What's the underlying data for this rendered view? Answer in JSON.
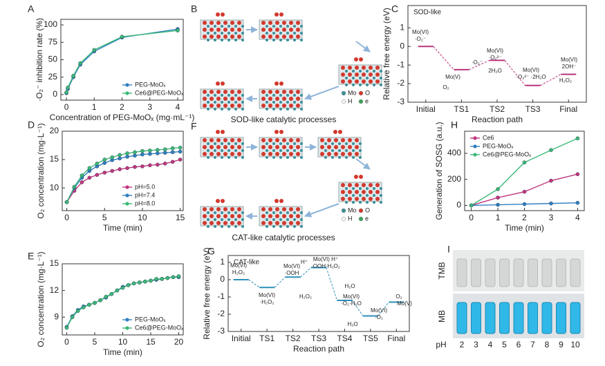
{
  "chart_data": [
    {
      "label": "A",
      "type": "line",
      "xlabel": "Concentration of PEG-MoOₓ (mg·mL⁻¹)",
      "ylabel": "·O₂⁻ inhibition rate (%)",
      "x": [
        0,
        0.05,
        0.25,
        0.5,
        1,
        2,
        4
      ],
      "xlim": [
        -0.2,
        4.2
      ],
      "xticks": [
        0,
        1,
        2,
        3,
        4
      ],
      "ylim": [
        -8,
        108
      ],
      "yticks": [
        0,
        25,
        50,
        75,
        100
      ],
      "legend": "lower right",
      "series": [
        {
          "name": "PEG-MoOₓ",
          "color": "#2f7fc1",
          "values": [
            2,
            8,
            25,
            43,
            62,
            82,
            94
          ]
        },
        {
          "name": "Ce6@PEG-MoOₓ",
          "color": "#3cb878",
          "values": [
            3,
            10,
            27,
            45,
            64,
            83,
            92
          ]
        }
      ]
    },
    {
      "label": "C",
      "type": "energy",
      "title": "SOD-like",
      "color": "#b8337a",
      "xlabel": "Reaction path",
      "ylabel": "Relative free energy (eV)",
      "categories": [
        "Initial",
        "TS1",
        "TS2",
        "TS3",
        "Final"
      ],
      "values": [
        0,
        -1.25,
        -0.75,
        -2.1,
        -1.5
      ],
      "ylim": [
        -3,
        2.2
      ],
      "yticks": [
        -3,
        -2,
        -1,
        0,
        1
      ],
      "annotations": [
        {
          "text": "Mo(VI)"
        },
        {
          "text": "·O₂⁻"
        },
        {
          "text": "Mo(V)"
        },
        {
          "text": "O₂",
          "color": "#3aa55a"
        },
        {
          "text": "·O₂⁻"
        },
        {
          "text": "Mo(VI)"
        },
        {
          "text": "·O₂²⁻"
        },
        {
          "text": "2H₂O"
        },
        {
          "text": "Mo(VI)"
        },
        {
          "text": "·O₂²⁻ ·2H₂O"
        },
        {
          "text": "Mo(VI)"
        },
        {
          "text": "2OH⁻"
        },
        {
          "text": "H₂O₂",
          "color": "#3aa55a"
        }
      ]
    },
    {
      "label": "D",
      "type": "line",
      "xlabel": "Time (min)",
      "ylabel": "O₂ concentration (mg·L⁻¹)",
      "x": [
        0,
        1,
        2,
        3,
        4,
        5,
        6,
        7,
        8,
        9,
        10,
        11,
        12,
        13,
        14,
        15
      ],
      "xlim": [
        -0.6,
        15.4
      ],
      "xticks": [
        0,
        5,
        10,
        15
      ],
      "ylim": [
        6,
        20
      ],
      "yticks": [
        10,
        15,
        20
      ],
      "legend": "lower right",
      "series": [
        {
          "name": "pH=5.0",
          "color": "#c2357f",
          "values": [
            7.5,
            9.5,
            11,
            11.8,
            12.3,
            12.7,
            13.0,
            13.3,
            13.5,
            13.7,
            13.8,
            14.0,
            14.1,
            14.3,
            14.6,
            15.0
          ]
        },
        {
          "name": "pH=7.4",
          "color": "#2f7fc1",
          "values": [
            7.5,
            10,
            11.8,
            13,
            13.8,
            14.4,
            14.9,
            15.2,
            15.5,
            15.7,
            15.9,
            16.0,
            16.1,
            16.2,
            16.3,
            16.4
          ]
        },
        {
          "name": "pH=8.0",
          "color": "#3cb878",
          "values": [
            7.5,
            10.2,
            12.2,
            13.5,
            14.3,
            15,
            15.4,
            15.8,
            16.1,
            16.3,
            16.5,
            16.6,
            16.7,
            16.8,
            17.0,
            17.1
          ]
        }
      ]
    },
    {
      "label": "E",
      "type": "line",
      "xlabel": "Time (min)",
      "ylabel": "O₂ concentration (mg·L⁻¹)",
      "x": [
        0,
        1,
        2,
        3,
        4,
        5,
        6,
        7,
        8,
        9,
        10,
        11,
        12,
        13,
        14,
        15,
        16,
        17,
        18,
        19,
        20
      ],
      "xlim": [
        -0.8,
        20.8
      ],
      "xticks": [
        0,
        5,
        10,
        15,
        20
      ],
      "ylim": [
        7,
        15
      ],
      "yticks": [
        9,
        12,
        15
      ],
      "legend": "lower right",
      "series": [
        {
          "name": "PEG-MoOₓ",
          "color": "#2f7fc1",
          "values": [
            7.9,
            9.1,
            9.8,
            10.2,
            10.4,
            10.6,
            10.9,
            11.2,
            11.6,
            12.0,
            12.4,
            12.6,
            12.8,
            12.9,
            13.0,
            13.1,
            13.2,
            13.3,
            13.4,
            13.5,
            13.5
          ]
        },
        {
          "name": "Ce6@PEG-MoOₓ",
          "color": "#3cb878",
          "values": [
            7.8,
            9.0,
            9.7,
            10.1,
            10.4,
            10.6,
            10.9,
            11.3,
            11.6,
            12.0,
            12.3,
            12.6,
            12.8,
            12.9,
            13.0,
            13.1,
            13.3,
            13.3,
            13.4,
            13.5,
            13.6
          ]
        }
      ]
    },
    {
      "label": "G",
      "type": "energy",
      "title": "CAT-like",
      "color": "#2a8fb8",
      "xlabel": "Reaction path",
      "ylabel": "Relative free energy (eV)",
      "categories": [
        "Initial",
        "TS1",
        "TS2",
        "TS3",
        "TS4",
        "TS5",
        "Final"
      ],
      "values": [
        0,
        -0.45,
        0.15,
        0.7,
        -1.2,
        -2.1,
        -1.3
      ],
      "ylim": [
        -3,
        1.4
      ],
      "yticks": [
        -3,
        -2,
        -1,
        0,
        1
      ],
      "annotations": [
        {
          "text": "Mo(VI)"
        },
        {
          "text": "H₂O₂"
        },
        {
          "text": "Mo(VI)"
        },
        {
          "text": "·H₂O₂"
        },
        {
          "text": "Mo(VI)"
        },
        {
          "text": "·OOH"
        },
        {
          "text": "H⁺"
        },
        {
          "text": "Mo(VI) H⁺"
        },
        {
          "text": "·OOH·H₂O₂"
        },
        {
          "text": "H₂O₂",
          "color": "#c2357f"
        },
        {
          "text": "H₂O",
          "color": "#3aa55a"
        },
        {
          "text": "Mo(VI)"
        },
        {
          "text": "·O₂·H₂O"
        },
        {
          "text": "H₂O",
          "color": "#3aa55a"
        },
        {
          "text": "Mo(VI)"
        },
        {
          "text": "·O₂"
        },
        {
          "text": "O₂",
          "color": "#3aa55a"
        },
        {
          "text": "Mo(V)"
        }
      ]
    },
    {
      "label": "H",
      "type": "line",
      "xlabel": "Time (min)",
      "ylabel": "Generation of SOSG (a.u.)",
      "x": [
        0,
        1,
        2,
        3,
        4
      ],
      "xlim": [
        -0.25,
        4.25
      ],
      "xticks": [
        0,
        1,
        2,
        3,
        4
      ],
      "ylim": [
        -40,
        570
      ],
      "yticks": [
        0,
        200,
        400
      ],
      "legend": "upper left",
      "series": [
        {
          "name": "Ce6",
          "color": "#c2357f",
          "values": [
            0,
            60,
            105,
            190,
            240
          ]
        },
        {
          "name": "PEG-MoOₓ",
          "color": "#2f7fc1",
          "values": [
            0,
            5,
            10,
            15,
            20
          ]
        },
        {
          "name": "Ce6@PEG-MoOₓ",
          "color": "#3cb878",
          "values": [
            0,
            125,
            330,
            425,
            515
          ]
        }
      ]
    }
  ],
  "panels": {
    "B": {
      "label": "B",
      "caption": "SOD-like catalytic processes",
      "legend": [
        "Mo",
        "O",
        "H",
        "e"
      ]
    },
    "F": {
      "label": "F",
      "caption": "CAT-like catalytic processes",
      "legend": [
        "Mo",
        "O",
        "H",
        "e"
      ]
    },
    "I": {
      "label": "I",
      "rows": [
        "TMB",
        "MB"
      ],
      "axis_label": "pH",
      "values": [
        2,
        3,
        4,
        5,
        6,
        7,
        8,
        9,
        10
      ]
    }
  }
}
